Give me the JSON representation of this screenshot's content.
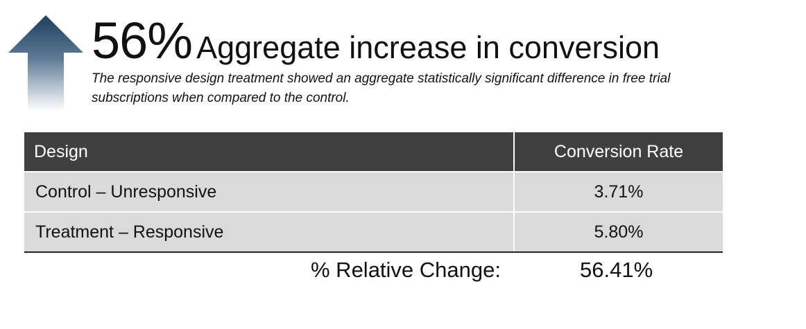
{
  "headline": {
    "big_number": "56%",
    "text": "Aggregate increase in conversion"
  },
  "subtitle": "The responsive design treatment showed an aggregate statistically significant difference in free trial subscriptions when compared to the control.",
  "table": {
    "headers": [
      "Design",
      "Conversion Rate"
    ],
    "rows": [
      {
        "design": "Control – Unresponsive",
        "rate": "3.71%"
      },
      {
        "design": "Treatment – Responsive",
        "rate": "5.80%"
      }
    ]
  },
  "summary": {
    "label": "% Relative Change:",
    "value": "56.41%"
  },
  "colors": {
    "arrow_top": "#1f3f5f",
    "header_bg": "#404040",
    "row_bg": "#dadada"
  },
  "icons": {
    "arrow": "up-arrow-icon"
  }
}
